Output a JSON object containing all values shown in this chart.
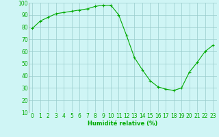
{
  "x": [
    0,
    1,
    2,
    3,
    4,
    5,
    6,
    7,
    8,
    9,
    10,
    11,
    12,
    13,
    14,
    15,
    16,
    17,
    18,
    19,
    20,
    21,
    22,
    23
  ],
  "y": [
    79,
    85,
    88,
    91,
    92,
    93,
    94,
    95,
    97,
    98,
    98,
    90,
    73,
    55,
    45,
    36,
    31,
    29,
    28,
    30,
    43,
    51,
    60,
    65
  ],
  "line_color": "#00aa00",
  "marker": "+",
  "marker_size": 3,
  "marker_lw": 0.8,
  "line_width": 0.8,
  "bg_color": "#cff5f5",
  "grid_color": "#99cccc",
  "xlabel": "Humidité relative (%)",
  "xlabel_color": "#00aa00",
  "tick_color": "#00aa00",
  "ylim": [
    10,
    100
  ],
  "yticks": [
    10,
    20,
    30,
    40,
    50,
    60,
    70,
    80,
    90,
    100
  ],
  "xticks": [
    0,
    1,
    2,
    3,
    4,
    5,
    6,
    7,
    8,
    9,
    10,
    11,
    12,
    13,
    14,
    15,
    16,
    17,
    18,
    19,
    20,
    21,
    22,
    23
  ],
  "xlabel_fontsize": 6,
  "tick_fontsize": 5.5
}
